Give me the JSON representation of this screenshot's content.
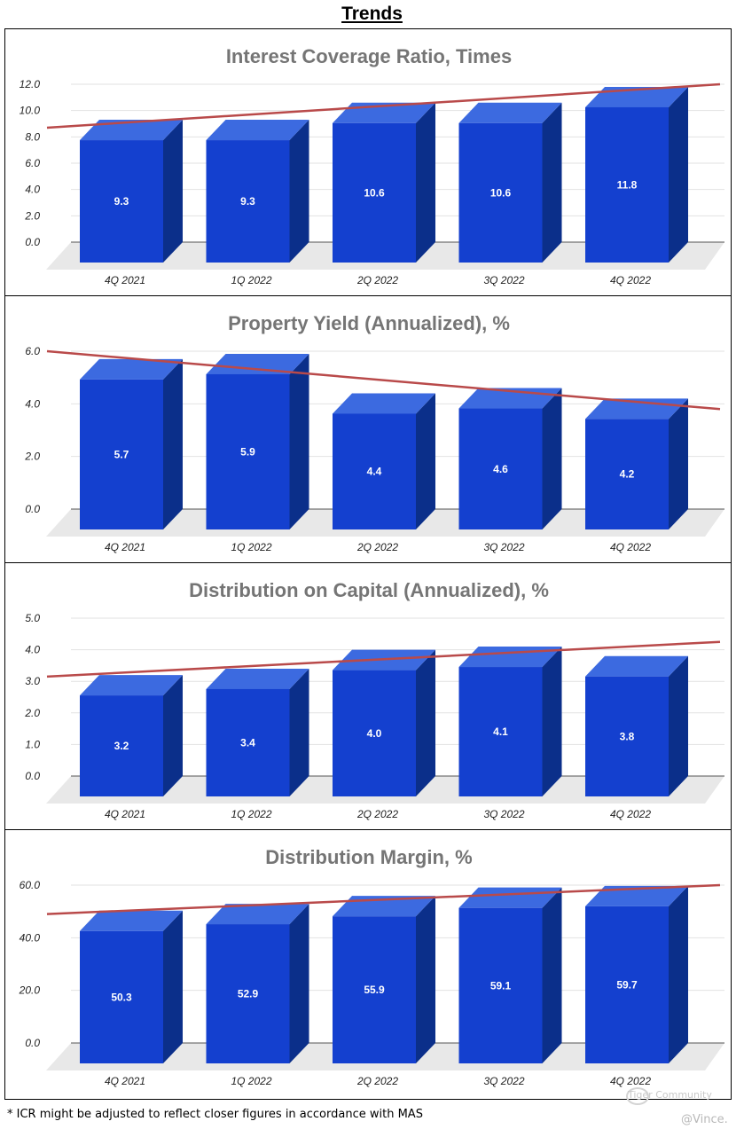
{
  "page_title": "Trends",
  "footnote": "* ICR might be adjusted to reflect closer figures in accordance with MAS",
  "watermark_brand": "Tiger Community",
  "watermark_user": "@Vince.",
  "colors": {
    "bar_front": "#1440cf",
    "bar_top": "#3c6ae0",
    "bar_side": "#0b2f8a",
    "trendline": "#b94a4a",
    "title": "#757575",
    "floor": "#e8e8e8",
    "grid": "#e2e2e2"
  },
  "chart_data": [
    {
      "type": "bar",
      "title": "Interest Coverage Ratio, Times",
      "categories": [
        "4Q 2021",
        "1Q 2022",
        "2Q 2022",
        "3Q 2022",
        "4Q 2022"
      ],
      "values": [
        9.3,
        9.3,
        10.6,
        10.6,
        11.8
      ],
      "value_labels": [
        "9.3",
        "9.3",
        "10.6",
        "10.6",
        "11.8"
      ],
      "yticks": [
        "0.0",
        "2.0",
        "4.0",
        "6.0",
        "8.0",
        "10.0",
        "12.0"
      ],
      "ylim": [
        0,
        12
      ],
      "trendline": [
        8.7,
        12.0
      ],
      "xlabel": "",
      "ylabel": "",
      "grid": true,
      "legend": false
    },
    {
      "type": "bar",
      "title": "Property Yield (Annualized), %",
      "categories": [
        "4Q 2021",
        "1Q 2022",
        "2Q 2022",
        "3Q 2022",
        "4Q 2022"
      ],
      "values": [
        5.7,
        5.9,
        4.4,
        4.6,
        4.2
      ],
      "value_labels": [
        "5.7",
        "5.9",
        "4.4",
        "4.6",
        "4.2"
      ],
      "yticks": [
        "0.0",
        "2.0",
        "4.0",
        "6.0"
      ],
      "ylim": [
        0,
        6
      ],
      "trendline": [
        6.0,
        3.8
      ],
      "xlabel": "",
      "ylabel": "",
      "grid": true,
      "legend": false
    },
    {
      "type": "bar",
      "title": "Distribution on Capital (Annualized), %",
      "categories": [
        "4Q 2021",
        "1Q 2022",
        "2Q 2022",
        "3Q 2022",
        "4Q 2022"
      ],
      "values": [
        3.2,
        3.4,
        4.0,
        4.1,
        3.8
      ],
      "value_labels": [
        "3.2",
        "3.4",
        "4.0",
        "4.1",
        "3.8"
      ],
      "yticks": [
        "0.0",
        "1.0",
        "2.0",
        "3.0",
        "4.0",
        "5.0"
      ],
      "ylim": [
        0,
        5
      ],
      "trendline": [
        3.15,
        4.25
      ],
      "xlabel": "",
      "ylabel": "",
      "grid": true,
      "legend": false
    },
    {
      "type": "bar",
      "title": "Distribution Margin, %",
      "categories": [
        "4Q 2021",
        "1Q 2022",
        "2Q 2022",
        "3Q 2022",
        "4Q 2022"
      ],
      "values": [
        50.3,
        52.9,
        55.9,
        59.1,
        59.7
      ],
      "value_labels": [
        "50.3",
        "52.9",
        "55.9",
        "59.1",
        "59.7"
      ],
      "yticks": [
        "0.0",
        "20.0",
        "40.0",
        "60.0"
      ],
      "ylim": [
        0,
        60
      ],
      "trendline": [
        49.0,
        60.0
      ],
      "xlabel": "",
      "ylabel": "",
      "grid": true,
      "legend": false
    }
  ]
}
